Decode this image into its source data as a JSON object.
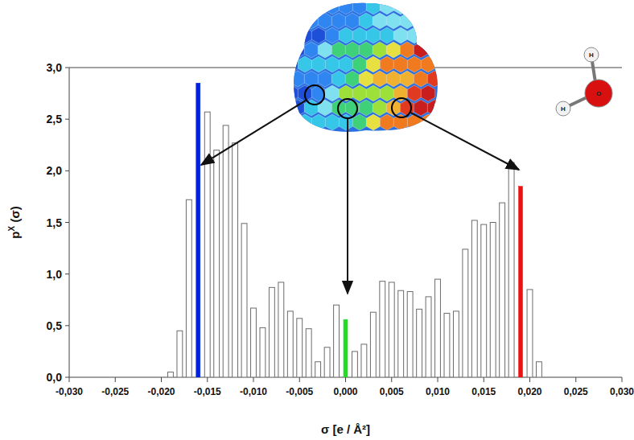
{
  "chart_data": {
    "type": "bar",
    "xlabel": "σ [e / Å²]",
    "ylabel": "pX (σ)",
    "annotations": [
      "H",
      "H",
      "O"
    ],
    "x": [
      -0.019,
      -0.018,
      -0.017,
      -0.016,
      -0.015,
      -0.014,
      -0.013,
      -0.012,
      -0.011,
      -0.01,
      -0.009,
      -0.008,
      -0.007,
      -0.006,
      -0.005,
      -0.004,
      -0.003,
      -0.002,
      -0.001,
      0.0,
      0.001,
      0.002,
      0.003,
      0.004,
      0.005,
      0.006,
      0.007,
      0.008,
      0.009,
      0.01,
      0.011,
      0.012,
      0.013,
      0.014,
      0.015,
      0.016,
      0.017,
      0.018,
      0.019,
      0.02,
      0.021
    ],
    "values": [
      0.05,
      0.45,
      1.72,
      2.85,
      2.57,
      2.2,
      2.44,
      2.27,
      1.49,
      0.67,
      0.48,
      0.87,
      0.92,
      0.64,
      0.57,
      0.47,
      0.15,
      0.29,
      0.7,
      0.56,
      0.25,
      0.32,
      0.63,
      0.93,
      0.92,
      0.84,
      0.83,
      0.66,
      0.78,
      0.95,
      0.62,
      0.64,
      1.24,
      1.52,
      1.48,
      1.5,
      1.69,
      2.08,
      1.85,
      0.85,
      0.15
    ],
    "colors": [
      "#ffffff",
      "#ffffff",
      "#ffffff",
      "#0022dd",
      "#ffffff",
      "#ffffff",
      "#ffffff",
      "#ffffff",
      "#ffffff",
      "#ffffff",
      "#ffffff",
      "#ffffff",
      "#ffffff",
      "#ffffff",
      "#ffffff",
      "#ffffff",
      "#ffffff",
      "#ffffff",
      "#ffffff",
      "#22dd22",
      "#ffffff",
      "#ffffff",
      "#ffffff",
      "#ffffff",
      "#ffffff",
      "#ffffff",
      "#ffffff",
      "#ffffff",
      "#ffffff",
      "#ffffff",
      "#ffffff",
      "#ffffff",
      "#ffffff",
      "#ffffff",
      "#ffffff",
      "#ffffff",
      "#ffffff",
      "#ffffff",
      "#ee1111",
      "#ffffff",
      "#ffffff"
    ],
    "xlim": [
      -0.03,
      0.03
    ],
    "xticks": [
      {
        "value": -0.03,
        "label": "-0,030"
      },
      {
        "value": -0.025,
        "label": "-0,025"
      },
      {
        "value": -0.02,
        "label": "-0,020"
      },
      {
        "value": -0.015,
        "label": "-0,015"
      },
      {
        "value": -0.01,
        "label": "-0,010"
      },
      {
        "value": -0.005,
        "label": "-0,005"
      },
      {
        "value": 0,
        "label": "0,000"
      },
      {
        "value": 0.005,
        "label": "0,005"
      },
      {
        "value": 0.01,
        "label": "0,010"
      },
      {
        "value": 0.015,
        "label": "0,015"
      },
      {
        "value": 0.02,
        "label": "0,020"
      },
      {
        "value": 0.025,
        "label": "0,025"
      },
      {
        "value": 0.03,
        "label": "0,030"
      }
    ],
    "ylim": [
      0,
      3
    ],
    "yticks": [
      {
        "value": 0,
        "label": "0,0"
      },
      {
        "value": 0.5,
        "label": "0,5"
      },
      {
        "value": 1,
        "label": "1,0"
      },
      {
        "value": 1.5,
        "label": "1,5"
      },
      {
        "value": 2,
        "label": "2,0"
      },
      {
        "value": 2.5,
        "label": "2,5"
      },
      {
        "value": 3,
        "label": "3,0"
      }
    ],
    "grid": false
  }
}
